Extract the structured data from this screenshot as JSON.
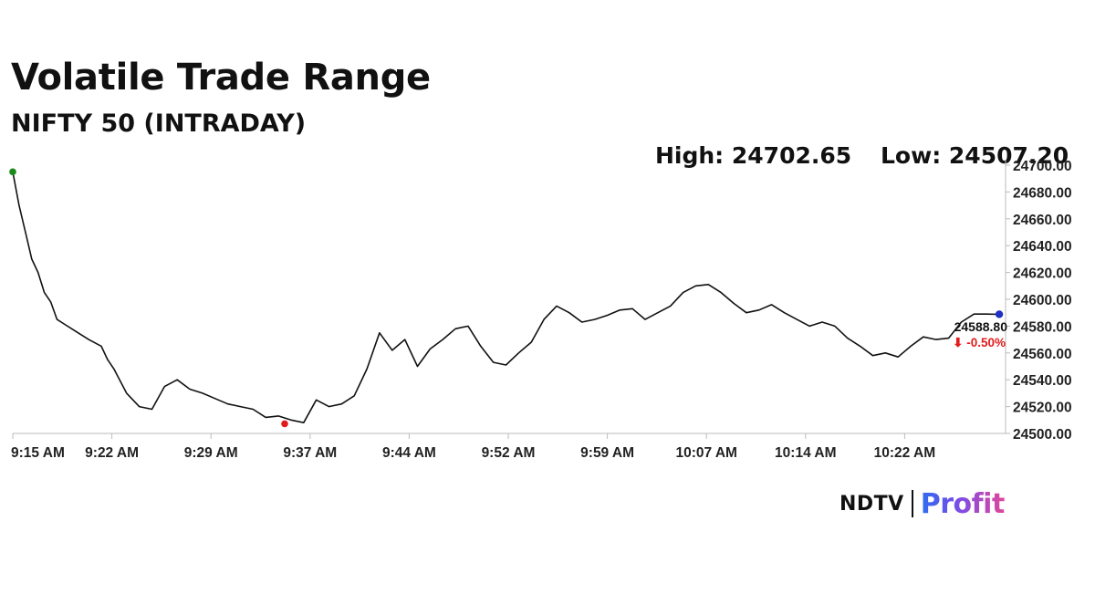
{
  "header": {
    "title": "Volatile Trade Range",
    "subtitle": "NIFTY 50 (INTRADAY)",
    "high_label": "High: 24702.65",
    "low_label": "Low: 24507.20"
  },
  "last": {
    "value": "24588.80",
    "change": "⬇ -0.50%"
  },
  "brand": {
    "ndtv": "NDTV",
    "profit": "Profit"
  },
  "colors": {
    "line": "#111111",
    "high_marker": "#1a8a1a",
    "low_marker": "#e31b1b",
    "last_marker": "#1f2fc4",
    "down": "#e31b1b",
    "axis": "#bbbbbb"
  },
  "chart_data": {
    "type": "line",
    "title": "Volatile Trade Range",
    "subtitle": "NIFTY 50 (INTRADAY)",
    "xlabel": "",
    "ylabel": "",
    "x_ticks": [
      "9:15 AM",
      "9:22 AM",
      "9:29 AM",
      "9:37 AM",
      "9:44 AM",
      "9:52 AM",
      "9:59 AM",
      "10:07 AM",
      "10:14 AM",
      "10:22 AM"
    ],
    "y_ticks": [
      "24500.00",
      "24520.00",
      "24540.00",
      "24560.00",
      "24580.00",
      "24600.00",
      "24620.00",
      "24640.00",
      "24660.00",
      "24680.00",
      "24700.00"
    ],
    "ylim": [
      24500,
      24700
    ],
    "x_unit": "minutes after 9:15 AM",
    "xlim": [
      0,
      78.5
    ],
    "grid": false,
    "y_axis_side": "right",
    "series": [
      {
        "x": [
          0,
          0.5,
          1,
          1.5,
          2,
          2.5,
          3,
          3.5,
          4,
          5,
          6,
          7,
          7.5,
          8,
          9,
          10,
          11,
          12,
          13,
          14,
          15,
          16,
          17,
          18,
          19,
          20,
          21,
          22,
          23,
          24,
          25,
          26,
          27,
          28,
          29,
          30,
          31,
          32,
          33,
          34,
          35,
          36,
          37,
          38,
          39,
          40,
          41,
          42,
          43,
          44,
          45,
          46,
          47,
          48,
          49,
          50,
          51,
          52,
          53,
          54,
          55,
          56,
          57,
          58,
          59,
          60,
          61,
          62,
          63,
          64,
          65,
          66,
          67,
          68,
          69,
          70,
          71,
          72,
          73,
          74,
          75,
          76,
          77,
          78
        ],
        "y": [
          24695,
          24670,
          24650,
          24630,
          24620,
          24605,
          24598,
          24585,
          24582,
          24576,
          24570,
          24565,
          24555,
          24548,
          24530,
          24520,
          24518,
          24535,
          24540,
          24533,
          24530,
          24526,
          24522,
          24520,
          24518,
          24512,
          24513,
          24510,
          24508,
          24525,
          24520,
          24522,
          24528,
          24548,
          24575,
          24562,
          24570,
          24550,
          24563,
          24570,
          24578,
          24580,
          24565,
          24553,
          24551,
          24560,
          24568,
          24585,
          24595,
          24590,
          24583,
          24585,
          24588,
          24592,
          24593,
          24585,
          24590,
          24595,
          24605,
          24610,
          24611,
          24605,
          24597,
          24590,
          24592,
          24596,
          24590,
          24585,
          24580,
          24583,
          24580,
          24571,
          24565,
          24558,
          24560,
          24557,
          24565,
          24572,
          24570,
          24571,
          24583,
          24589,
          24589,
          24588.8
        ]
      }
    ],
    "markers": {
      "high": {
        "x": 0,
        "y": 24695
      },
      "low": {
        "x": 21.5,
        "y": 24507.2
      },
      "last": {
        "x": 78,
        "y": 24588.8
      }
    }
  }
}
